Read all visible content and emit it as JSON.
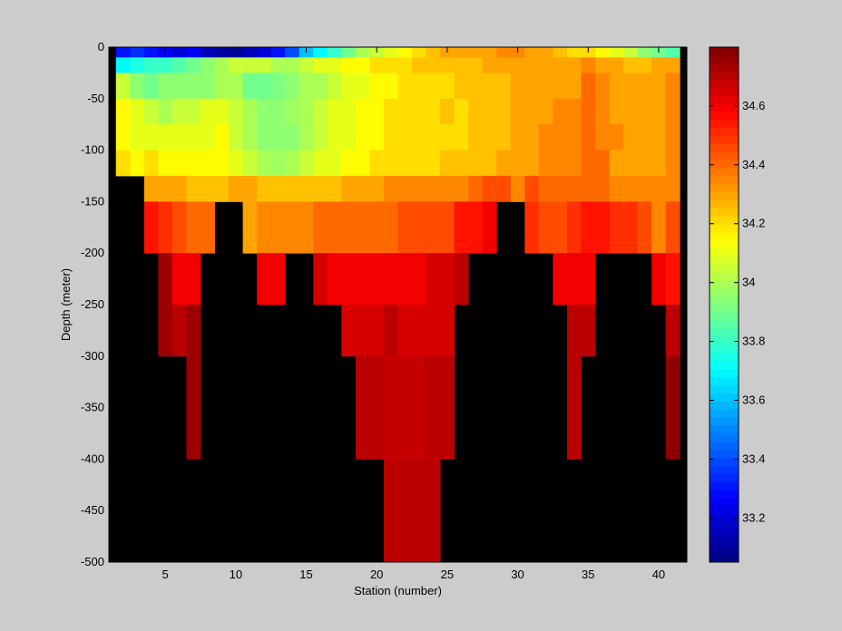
{
  "chart_data": [
    {
      "type": "heatmap",
      "title": "",
      "xlabel": "Station (number)",
      "ylabel": "Depth (meter)",
      "xlim": [
        1,
        42
      ],
      "ylim": [
        -500,
        0
      ],
      "xticks": [
        5,
        10,
        15,
        20,
        25,
        30,
        35,
        40
      ],
      "yticks": [
        0,
        -50,
        -100,
        -150,
        -200,
        -250,
        -300,
        -350,
        -400,
        -450,
        -500
      ],
      "missing_color": "#000000",
      "background_color": "#cccccc",
      "x_stations": [
        2,
        3,
        4,
        5,
        6,
        7,
        8,
        9,
        10,
        11,
        12,
        13,
        14,
        15,
        16,
        17,
        18,
        19,
        20,
        21,
        22,
        23,
        24,
        25,
        26,
        27,
        28,
        29,
        30,
        31,
        32,
        33,
        34,
        35,
        36,
        37,
        38,
        39,
        40,
        41
      ],
      "depth_rows": [
        {
          "top": 0,
          "bottom": -10,
          "values": [
            33.3,
            33.35,
            33.3,
            33.25,
            33.2,
            33.25,
            33.15,
            33.1,
            33.1,
            33.15,
            33.2,
            33.3,
            33.4,
            33.6,
            33.7,
            33.8,
            33.9,
            34.0,
            34.05,
            34.1,
            34.15,
            34.2,
            34.25,
            34.3,
            34.3,
            34.3,
            34.3,
            34.35,
            34.35,
            34.3,
            34.3,
            34.25,
            34.2,
            34.2,
            34.15,
            34.1,
            34.05,
            33.95,
            33.9,
            33.85
          ]
        },
        {
          "top": -10,
          "bottom": -25,
          "values": [
            33.7,
            33.75,
            33.8,
            33.8,
            33.85,
            33.9,
            33.95,
            34.0,
            34.05,
            34.05,
            34.05,
            34.0,
            34.0,
            34.05,
            34.1,
            34.1,
            34.15,
            34.15,
            34.2,
            34.2,
            34.2,
            34.25,
            34.25,
            34.25,
            34.25,
            34.25,
            34.3,
            34.3,
            34.3,
            34.3,
            34.3,
            34.3,
            34.3,
            34.35,
            34.3,
            34.3,
            34.25,
            34.25,
            34.3,
            34.3
          ]
        },
        {
          "top": -25,
          "bottom": -50,
          "values": [
            34.05,
            33.95,
            33.9,
            33.95,
            33.95,
            33.95,
            33.95,
            34.0,
            34.0,
            33.9,
            33.9,
            33.92,
            33.95,
            34.0,
            34.0,
            34.05,
            34.1,
            34.1,
            34.15,
            34.15,
            34.2,
            34.2,
            34.2,
            34.2,
            34.25,
            34.25,
            34.25,
            34.25,
            34.3,
            34.3,
            34.3,
            34.3,
            34.3,
            34.4,
            34.35,
            34.3,
            34.3,
            34.3,
            34.3,
            34.35
          ]
        },
        {
          "top": -50,
          "bottom": -75,
          "values": [
            34.15,
            34.1,
            34.05,
            34.0,
            34.05,
            34.05,
            34.1,
            34.1,
            34.05,
            34.0,
            33.95,
            33.95,
            33.98,
            34.0,
            34.05,
            34.1,
            34.1,
            34.15,
            34.15,
            34.2,
            34.2,
            34.2,
            34.2,
            34.25,
            34.2,
            34.25,
            34.25,
            34.25,
            34.3,
            34.3,
            34.3,
            34.35,
            34.35,
            34.4,
            34.35,
            34.3,
            34.3,
            34.3,
            34.3,
            34.35
          ]
        },
        {
          "top": -75,
          "bottom": -100,
          "values": [
            34.15,
            34.1,
            34.1,
            34.1,
            34.1,
            34.1,
            34.1,
            34.15,
            34.05,
            34.0,
            33.95,
            33.95,
            33.95,
            34.0,
            34.05,
            34.1,
            34.1,
            34.15,
            34.15,
            34.2,
            34.2,
            34.2,
            34.2,
            34.2,
            34.2,
            34.25,
            34.25,
            34.25,
            34.3,
            34.3,
            34.35,
            34.35,
            34.35,
            34.4,
            34.35,
            34.35,
            34.3,
            34.3,
            34.3,
            34.35
          ]
        },
        {
          "top": -100,
          "bottom": -125,
          "values": [
            34.2,
            34.15,
            34.2,
            34.15,
            34.15,
            34.15,
            34.15,
            34.15,
            34.1,
            34.05,
            34.0,
            33.98,
            34.0,
            34.05,
            34.1,
            34.1,
            34.15,
            34.15,
            34.2,
            34.2,
            34.2,
            34.2,
            34.2,
            34.25,
            34.25,
            34.25,
            34.25,
            34.3,
            34.3,
            34.3,
            34.35,
            34.35,
            34.35,
            34.4,
            34.4,
            34.3,
            34.3,
            34.3,
            34.3,
            34.35
          ]
        },
        {
          "top": -125,
          "bottom": -150,
          "values": [
            null,
            null,
            34.3,
            34.3,
            34.3,
            34.25,
            34.25,
            34.25,
            34.3,
            34.3,
            34.25,
            34.25,
            34.25,
            34.25,
            34.25,
            34.25,
            34.3,
            34.3,
            34.3,
            34.35,
            34.35,
            34.35,
            34.35,
            34.35,
            34.35,
            34.4,
            34.45,
            34.45,
            34.35,
            34.45,
            34.4,
            34.4,
            34.4,
            34.4,
            34.4,
            34.35,
            34.35,
            34.35,
            34.35,
            34.35
          ]
        },
        {
          "top": -150,
          "bottom": -200,
          "values": [
            null,
            null,
            34.55,
            34.5,
            34.45,
            34.4,
            34.4,
            null,
            null,
            34.3,
            34.35,
            34.35,
            34.35,
            34.35,
            34.4,
            34.4,
            34.4,
            34.4,
            34.4,
            34.4,
            34.45,
            34.45,
            34.45,
            34.45,
            34.55,
            34.55,
            34.6,
            null,
            null,
            34.5,
            34.45,
            34.45,
            34.5,
            34.55,
            34.55,
            34.5,
            34.5,
            34.45,
            34.35,
            34.45
          ]
        },
        {
          "top": -200,
          "bottom": -250,
          "values": [
            null,
            null,
            null,
            34.75,
            34.6,
            34.6,
            null,
            null,
            null,
            null,
            34.6,
            34.6,
            null,
            null,
            34.65,
            34.6,
            34.6,
            34.6,
            34.6,
            34.6,
            34.6,
            34.6,
            34.65,
            34.65,
            34.7,
            null,
            null,
            null,
            null,
            null,
            null,
            34.6,
            34.6,
            34.6,
            null,
            null,
            null,
            null,
            34.6,
            34.55
          ]
        },
        {
          "top": -250,
          "bottom": -300,
          "values": [
            null,
            null,
            null,
            34.75,
            34.7,
            34.75,
            null,
            null,
            null,
            null,
            null,
            null,
            null,
            null,
            null,
            null,
            34.65,
            34.65,
            34.65,
            34.7,
            34.65,
            34.65,
            34.65,
            34.65,
            null,
            null,
            null,
            null,
            null,
            null,
            null,
            null,
            34.7,
            34.7,
            null,
            null,
            null,
            null,
            null,
            34.7
          ]
        },
        {
          "top": -300,
          "bottom": -400,
          "values": [
            null,
            null,
            null,
            null,
            null,
            34.75,
            null,
            null,
            null,
            null,
            null,
            null,
            null,
            null,
            null,
            null,
            null,
            34.7,
            34.7,
            34.68,
            34.68,
            34.68,
            34.7,
            34.7,
            null,
            null,
            null,
            null,
            null,
            null,
            null,
            null,
            34.7,
            null,
            null,
            null,
            null,
            null,
            null,
            34.77
          ]
        },
        {
          "top": -400,
          "bottom": -500,
          "values": [
            null,
            null,
            null,
            null,
            null,
            null,
            null,
            null,
            null,
            null,
            null,
            null,
            null,
            null,
            null,
            null,
            null,
            null,
            null,
            34.7,
            34.7,
            34.7,
            34.7,
            null,
            null,
            null,
            null,
            null,
            null,
            null,
            null,
            null,
            null,
            null,
            null,
            null,
            null,
            null,
            null,
            null
          ]
        }
      ]
    },
    {
      "type": "colorbar",
      "clim": [
        33.05,
        34.8
      ],
      "tick_values": [
        33.2,
        33.4,
        33.6,
        33.8,
        34.0,
        34.2,
        34.4,
        34.6
      ],
      "tick_labels": [
        "33.2",
        "33.4",
        "33.6",
        "33.8",
        "34",
        "34.2",
        "34.4",
        "34.6"
      ],
      "colormap": "jet"
    }
  ]
}
